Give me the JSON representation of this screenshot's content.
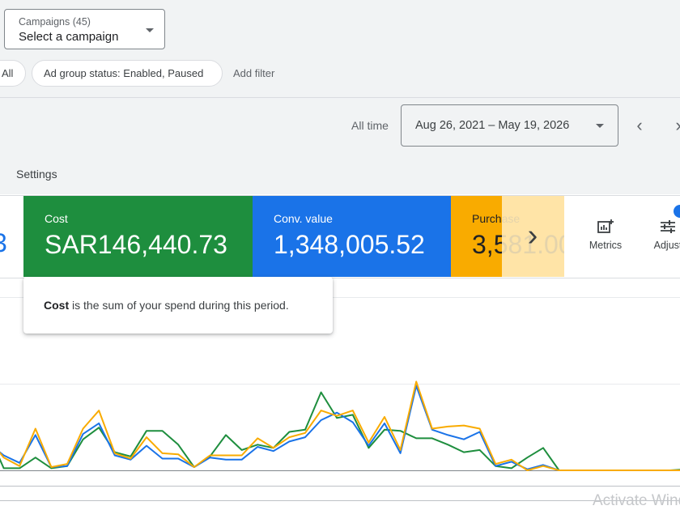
{
  "campaign_selector": {
    "label": "Campaigns (45)",
    "value": "Select a campaign"
  },
  "filters": {
    "all_chip": "All",
    "status_chip": "Ad group status: Enabled, Paused",
    "add_filter": "Add filter"
  },
  "date_range": {
    "preset": "All time",
    "value": "Aug 26, 2021 – May 19, 2026"
  },
  "tabs": {
    "settings": "Settings"
  },
  "scorecards": {
    "left_partial_value": "3",
    "cost": {
      "title": "Cost",
      "value": "SAR146,440.73"
    },
    "conv_value": {
      "title": "Conv. value",
      "value": "1,348,005.52"
    },
    "purchase": {
      "title": "Purchase",
      "value": "3,581.00"
    }
  },
  "tools": {
    "metrics": "Metrics",
    "adjust": "Adjust",
    "adjust_badge": ""
  },
  "tooltip": {
    "term": "Cost",
    "text": " is the sum of your spend during this period."
  },
  "colors": {
    "cost": "#1e8e3e",
    "conv_value": "#1a73e8",
    "purchase": "#f9ab00"
  },
  "watermark": "Activate Windows",
  "chart_data": {
    "type": "line",
    "grid": true,
    "series": [
      {
        "color": "#1e8e3e",
        "values": [
          3.6,
          0.2,
          0.2,
          1.2,
          0.2,
          0.4,
          2.9,
          4.0,
          1.7,
          1.3,
          3.7,
          3.7,
          2.4,
          0.3,
          1.3,
          3.3,
          1.9,
          2.4,
          2.1,
          3.6,
          3.8,
          7.3,
          4.9,
          5.2,
          2.1,
          3.8,
          3.7,
          3.0,
          3.0,
          2.4,
          1.7,
          1.9,
          0.4,
          0.2,
          1.2,
          2.1,
          0.0,
          0.0,
          0.0,
          0.0,
          0.0,
          0.0,
          0.0,
          0.0,
          0.1
        ]
      },
      {
        "color": "#1a73e8",
        "values": [
          2.6,
          1.4,
          0.7,
          3.3,
          0.3,
          0.4,
          3.4,
          4.4,
          1.4,
          1.0,
          2.3,
          1.1,
          1.1,
          0.3,
          1.2,
          1.0,
          1.0,
          2.2,
          1.8,
          2.7,
          3.1,
          4.7,
          5.4,
          4.5,
          2.3,
          4.4,
          1.6,
          7.9,
          3.8,
          3.3,
          2.9,
          3.6,
          0.4,
          0.8,
          0.1,
          0.5,
          0.0,
          0.0,
          0.0,
          0.0,
          0.0,
          0.0,
          0.0,
          0.0,
          0.0
        ]
      },
      {
        "color": "#f9ab00",
        "values": [
          3.0,
          1.2,
          0.4,
          3.9,
          0.3,
          0.6,
          3.9,
          5.6,
          1.6,
          1.1,
          3.1,
          1.6,
          1.5,
          0.3,
          1.4,
          1.4,
          1.4,
          3.0,
          2.1,
          3.1,
          3.5,
          5.6,
          5.1,
          5.6,
          2.6,
          5.0,
          1.9,
          8.3,
          3.9,
          4.1,
          4.2,
          3.9,
          0.6,
          1.0,
          0.0,
          0.4,
          0.0,
          0.0,
          0.0,
          0.0,
          0.0,
          0.0,
          0.0,
          0.0,
          0.0
        ]
      }
    ]
  }
}
